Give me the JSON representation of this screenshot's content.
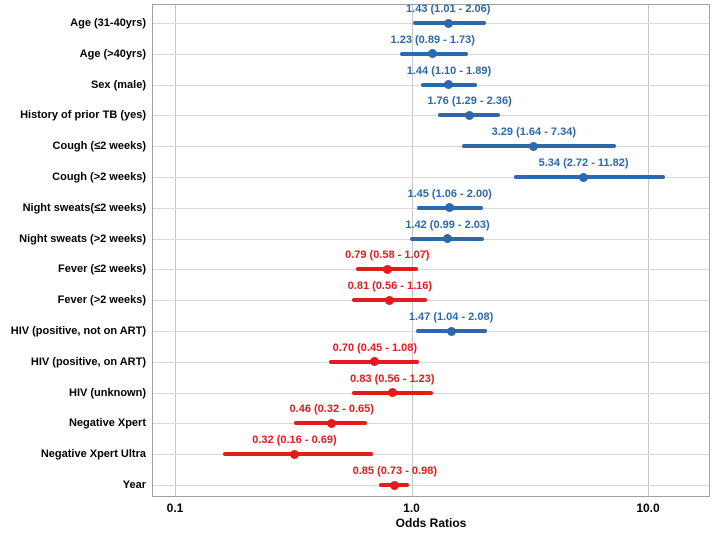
{
  "chart_data": {
    "type": "scatter",
    "subtype": "forest-plot",
    "title": "",
    "xlabel": "Odds Ratios",
    "x_scale": "log10",
    "xlim": [
      0.08,
      18.0
    ],
    "x_ticks": [
      0.1,
      1.0,
      10.0
    ],
    "x_tick_labels": [
      "0.1",
      "1.0",
      "10.0"
    ],
    "grid": true,
    "legend": "none",
    "colors": {
      "blue": "#2D69AA",
      "red": "#E41A1C"
    },
    "rows": [
      {
        "label": "Age (31-40yrs)",
        "or": 1.43,
        "ci_low": 1.01,
        "ci_high": 2.06,
        "or_ci": "1.43 (1.01 - 2.06)",
        "color": "blue"
      },
      {
        "label": "Age (>40yrs)",
        "or": 1.23,
        "ci_low": 0.89,
        "ci_high": 1.73,
        "or_ci": "1.23 (0.89 - 1.73)",
        "color": "blue"
      },
      {
        "label": "Sex (male)",
        "or": 1.44,
        "ci_low": 1.1,
        "ci_high": 1.89,
        "or_ci": "1.44 (1.10 - 1.89)",
        "color": "blue"
      },
      {
        "label": "History of prior TB (yes)",
        "or": 1.76,
        "ci_low": 1.29,
        "ci_high": 2.36,
        "or_ci": "1.76 (1.29 - 2.36)",
        "color": "blue"
      },
      {
        "label": "Cough (≤2 weeks)",
        "or": 3.29,
        "ci_low": 1.64,
        "ci_high": 7.34,
        "or_ci": "3.29 (1.64 - 7.34)",
        "color": "blue"
      },
      {
        "label": "Cough (>2 weeks)",
        "or": 5.34,
        "ci_low": 2.72,
        "ci_high": 11.82,
        "or_ci": "5.34 (2.72 - 11.82)",
        "color": "blue"
      },
      {
        "label": "Night sweats(≤2 weeks)",
        "or": 1.45,
        "ci_low": 1.06,
        "ci_high": 2.0,
        "or_ci": "1.45 (1.06 - 2.00)",
        "color": "blue"
      },
      {
        "label": "Night sweats (>2 weeks)",
        "or": 1.42,
        "ci_low": 0.99,
        "ci_high": 2.03,
        "or_ci": "1.42 (0.99 - 2.03)",
        "color": "blue"
      },
      {
        "label": "Fever (≤2 weeks)",
        "or": 0.79,
        "ci_low": 0.58,
        "ci_high": 1.07,
        "or_ci": "0.79 (0.58 - 1.07)",
        "color": "red"
      },
      {
        "label": "Fever (>2 weeks)",
        "or": 0.81,
        "ci_low": 0.56,
        "ci_high": 1.16,
        "or_ci": "0.81 (0.56 - 1.16)",
        "color": "red"
      },
      {
        "label": "HIV (positive, not on ART)",
        "or": 1.47,
        "ci_low": 1.04,
        "ci_high": 2.08,
        "or_ci": "1.47 (1.04 - 2.08)",
        "color": "blue"
      },
      {
        "label": "HIV (positive, on ART)",
        "or": 0.7,
        "ci_low": 0.45,
        "ci_high": 1.08,
        "or_ci": "0.70 (0.45 - 1.08)",
        "color": "red"
      },
      {
        "label": "HIV (unknown)",
        "or": 0.83,
        "ci_low": 0.56,
        "ci_high": 1.23,
        "or_ci": "0.83 (0.56 - 1.23)",
        "color": "red"
      },
      {
        "label": "Negative Xpert",
        "or": 0.46,
        "ci_low": 0.32,
        "ci_high": 0.65,
        "or_ci": "0.46 (0.32 - 0.65)",
        "color": "red"
      },
      {
        "label": "Negative Xpert Ultra",
        "or": 0.32,
        "ci_low": 0.16,
        "ci_high": 0.69,
        "or_ci": "0.32 (0.16 - 0.69)",
        "color": "red"
      },
      {
        "label": "Year",
        "or": 0.85,
        "ci_low": 0.73,
        "ci_high": 0.98,
        "or_ci": "0.85 (0.73 - 0.98)",
        "color": "red"
      }
    ]
  }
}
